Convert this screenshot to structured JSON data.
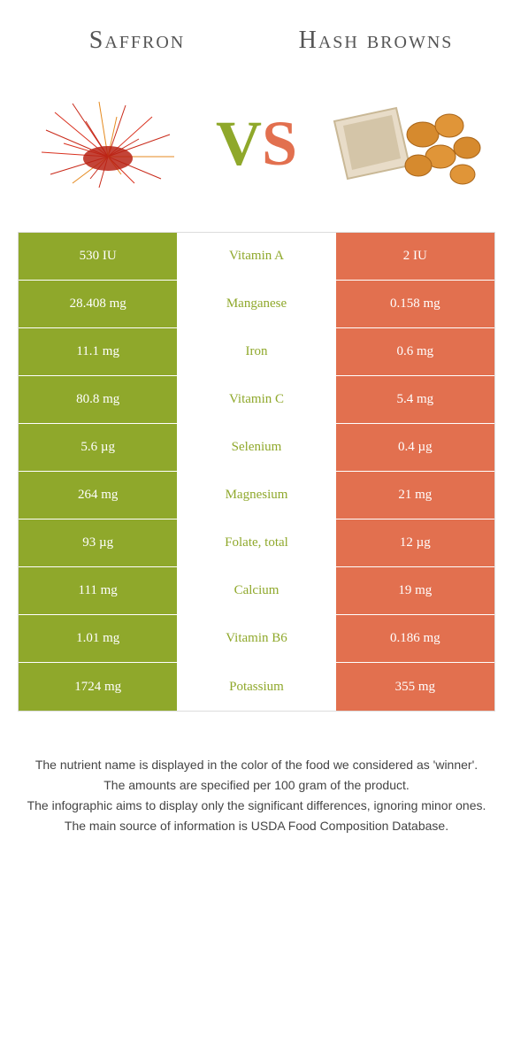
{
  "header": {
    "left_title": "Saffron",
    "right_title": "Hash browns",
    "vs_v": "V",
    "vs_s": "S"
  },
  "colors": {
    "left": "#8fa82b",
    "right": "#e2704f",
    "background": "#ffffff"
  },
  "table": {
    "rows": [
      {
        "left": "530 IU",
        "label": "Vitamin A",
        "right": "2 IU",
        "winner": "green"
      },
      {
        "left": "28.408 mg",
        "label": "Manganese",
        "right": "0.158 mg",
        "winner": "green"
      },
      {
        "left": "11.1 mg",
        "label": "Iron",
        "right": "0.6 mg",
        "winner": "green"
      },
      {
        "left": "80.8 mg",
        "label": "Vitamin C",
        "right": "5.4 mg",
        "winner": "green"
      },
      {
        "left": "5.6 µg",
        "label": "Selenium",
        "right": "0.4 µg",
        "winner": "green"
      },
      {
        "left": "264 mg",
        "label": "Magnesium",
        "right": "21 mg",
        "winner": "green"
      },
      {
        "left": "93 µg",
        "label": "Folate, total",
        "right": "12 µg",
        "winner": "green"
      },
      {
        "left": "111 mg",
        "label": "Calcium",
        "right": "19 mg",
        "winner": "green"
      },
      {
        "left": "1.01 mg",
        "label": "Vitamin B6",
        "right": "0.186 mg",
        "winner": "green"
      },
      {
        "left": "1724 mg",
        "label": "Potassium",
        "right": "355 mg",
        "winner": "green"
      }
    ]
  },
  "footer": {
    "line1": "The nutrient name is displayed in the color of the food we considered as 'winner'.",
    "line2": "The amounts are specified per 100 gram of the product.",
    "line3": "The infographic aims to display only the significant differences, ignoring minor ones.",
    "line4": "The main source of information is USDA Food Composition Database."
  }
}
